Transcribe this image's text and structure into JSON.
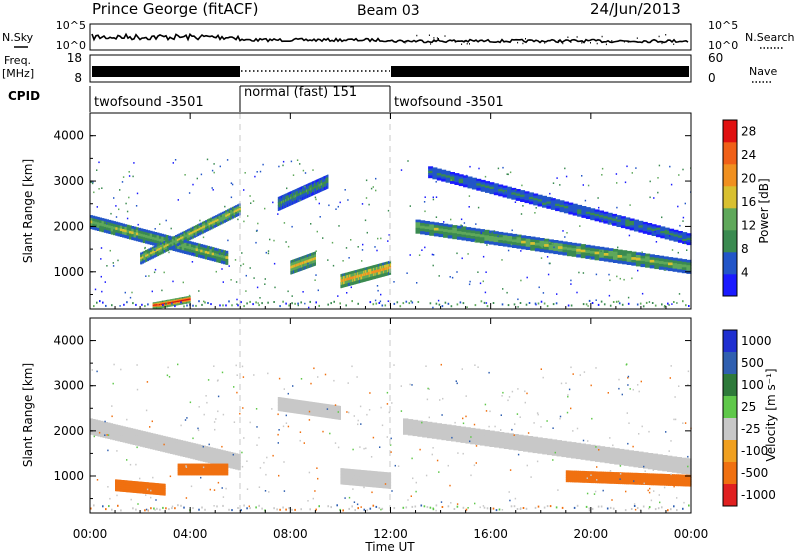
{
  "header": {
    "station": "Prince George (fitACF)",
    "beam": "Beam 03",
    "date": "24/Jun/2013"
  },
  "status_panels": {
    "nsky_label": "N.Sky",
    "nsearch_label": "N.Search",
    "noise_left_ticks": [
      "10^5",
      "10^0"
    ],
    "noise_right_ticks": [
      "10^5",
      "10^0"
    ],
    "freq_label_line1": "Freq.",
    "freq_label_line2": "[MHz]",
    "freq_ticks": [
      "18",
      "8"
    ],
    "nave_label": "Nave",
    "nave_ticks": [
      "60",
      "0"
    ],
    "cpid_label": "CPID",
    "cpid_segments": [
      {
        "label": "twofsound -3501",
        "start_hour": 0,
        "end_hour": 6
      },
      {
        "label": "normal (fast) 151",
        "start_hour": 6,
        "end_hour": 12
      },
      {
        "label": "twofsound -3501",
        "start_hour": 12,
        "end_hour": 24
      }
    ]
  },
  "colors": {
    "power_scale": [
      "#1a1aff",
      "#2255c8",
      "#3a8a50",
      "#5fa85a",
      "#d8c030",
      "#f09020",
      "#f06018",
      "#e01010"
    ],
    "velocity_scale": [
      "#1f2fd0",
      "#2f5fb0",
      "#2e7a3a",
      "#5fc84a",
      "#c8c8c8",
      "#f0a020",
      "#f07010",
      "#e02020"
    ]
  },
  "chart_data": [
    {
      "type": "heatmap",
      "name": "power",
      "ylabel": "Slant Range [km]",
      "ylim": [
        180,
        4500
      ],
      "yticks": [
        "1000",
        "2000",
        "3000",
        "4000"
      ],
      "xlim": [
        0,
        24
      ],
      "colorbar_label": "Power [dB]",
      "colorbar_ticks": [
        "4",
        "8",
        "12",
        "16",
        "20",
        "24",
        "28"
      ],
      "colorbar_range": [
        0,
        30
      ],
      "features": [
        {
          "desc": "band",
          "t0": 0.0,
          "t1": 5.5,
          "r0": 2100,
          "r1": 1300,
          "width": 300,
          "level": 14
        },
        {
          "desc": "band",
          "t0": 2.0,
          "t1": 6.0,
          "r0": 1300,
          "r1": 2400,
          "width": 250,
          "level": 16
        },
        {
          "desc": "patch",
          "t0": 2.5,
          "t1": 4.0,
          "r0": 250,
          "r1": 400,
          "width": 150,
          "level": 28
        },
        {
          "desc": "patch",
          "t0": 7.5,
          "t1": 9.5,
          "r0": 2500,
          "r1": 3000,
          "width": 300,
          "level": 10
        },
        {
          "desc": "patch",
          "t0": 8.0,
          "t1": 9.0,
          "r0": 1100,
          "r1": 1300,
          "width": 300,
          "level": 18
        },
        {
          "desc": "patch",
          "t0": 10.0,
          "t1": 12.0,
          "r0": 800,
          "r1": 1100,
          "width": 300,
          "level": 20
        },
        {
          "desc": "band",
          "t0": 13.0,
          "t1": 24.0,
          "r0": 2000,
          "r1": 1100,
          "width": 300,
          "level": 14
        },
        {
          "desc": "band",
          "t0": 13.5,
          "t1": 24.0,
          "r0": 3200,
          "r1": 1700,
          "width": 250,
          "level": 8
        }
      ]
    },
    {
      "type": "heatmap",
      "name": "velocity",
      "ylabel": "Slant Range [km]",
      "ylim": [
        180,
        4500
      ],
      "yticks": [
        "1000",
        "2000",
        "3000",
        "4000"
      ],
      "xlim": [
        0,
        24
      ],
      "xticks": [
        "00:00",
        "04:00",
        "08:00",
        "12:00",
        "16:00",
        "20:00",
        "00:00"
      ],
      "xlabel": "Time UT",
      "colorbar_label": "Velocity [m s⁻¹]",
      "colorbar_ticks": [
        "1000",
        "500",
        "100",
        "25",
        "-25",
        "-100",
        "-500",
        "-1000"
      ],
      "features": [
        {
          "desc": "gray band",
          "t0": 0.0,
          "t1": 6.0,
          "r0": 2100,
          "r1": 1300,
          "width": 350,
          "level": 0
        },
        {
          "desc": "orange patch",
          "t0": 3.5,
          "t1": 5.5,
          "r0": 1150,
          "r1": 1150,
          "width": 250,
          "level": -300
        },
        {
          "desc": "orange patch",
          "t0": 1.0,
          "t1": 3.0,
          "r0": 800,
          "r1": 700,
          "width": 250,
          "level": -200
        },
        {
          "desc": "gray patch",
          "t0": 7.5,
          "t1": 10.0,
          "r0": 2600,
          "r1": 2400,
          "width": 300,
          "level": 0
        },
        {
          "desc": "gray patch",
          "t0": 10.0,
          "t1": 12.0,
          "r0": 1000,
          "r1": 900,
          "width": 350,
          "level": 0
        },
        {
          "desc": "gray band",
          "t0": 12.5,
          "t1": 24.0,
          "r0": 2100,
          "r1": 1200,
          "width": 350,
          "level": 0
        },
        {
          "desc": "orange band",
          "t0": 19.0,
          "t1": 24.0,
          "r0": 1000,
          "r1": 900,
          "width": 250,
          "level": -300
        }
      ]
    }
  ]
}
